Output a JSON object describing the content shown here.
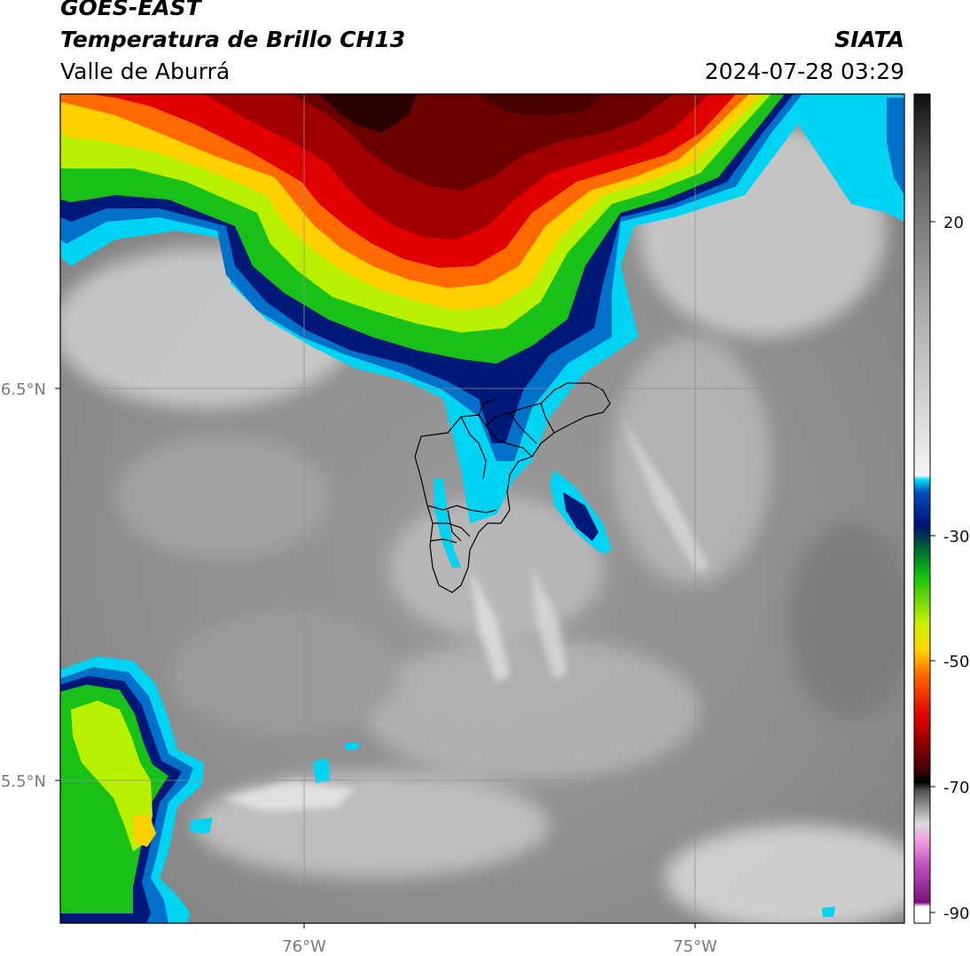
{
  "header": {
    "satellite": "GOES-EAST",
    "product": "Temperatura de Brillo CH13",
    "region": "Valle de Aburrá",
    "organization": "SIATA",
    "datetime": "2024-07-28 03:29"
  },
  "map": {
    "lat_ticks": [
      "6.5°N",
      "5.5°N"
    ],
    "lon_ticks": [
      "76°W",
      "75°W"
    ]
  },
  "colorbar": {
    "tick_labels": [
      "20",
      "-30",
      "-50",
      "-70",
      "-90"
    ]
  },
  "colors": {
    "cloud_cold_core": "#2a0000",
    "cloud_red": "#e00000",
    "cloud_yellow": "#ffe000",
    "cloud_green": "#20c000",
    "cloud_blue": "#00208a",
    "cloud_cyan": "#00d0f0",
    "clear_gray": "#8a8a8a"
  }
}
